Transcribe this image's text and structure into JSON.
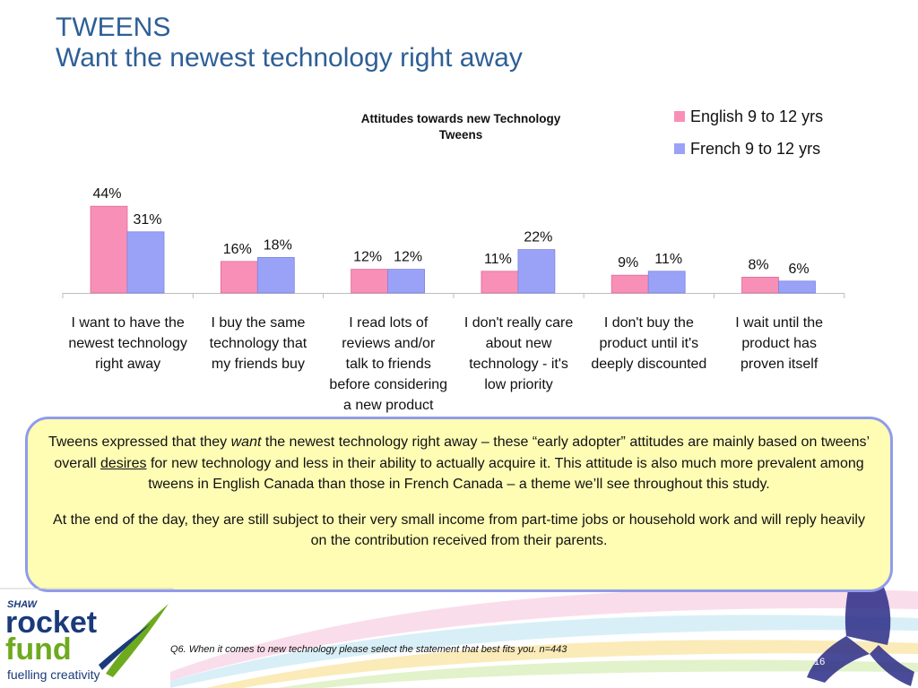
{
  "slide": {
    "title_line1": "TWEENS",
    "title_line2": "Want the newest technology right away",
    "page_number": "16",
    "footnote": "Q6. When it comes to new technology please select the statement that best fits you. n=443"
  },
  "logo": {
    "brand_top": "SHAW",
    "brand_line1": "rocket",
    "brand_line2": "fund",
    "tagline": "fuelling creativity",
    "colors": {
      "rocket": "#1a3a7a",
      "fund": "#6eaa1e"
    }
  },
  "chart_data": {
    "type": "bar",
    "title_line1": "Attitudes towards new Technology",
    "title_line2": "Tweens",
    "categories": [
      [
        "I want to have the",
        "newest technology",
        "right away"
      ],
      [
        "I buy the same",
        "technology that",
        "my friends buy"
      ],
      [
        "I read lots of",
        "reviews and/or",
        "talk to friends",
        "before considering",
        "a new product"
      ],
      [
        "I don't really care",
        "about new",
        "technology - it's",
        "low priority"
      ],
      [
        "I don't buy the",
        "product until it's",
        "deeply discounted"
      ],
      [
        "I wait until the",
        "product has",
        "proven itself"
      ]
    ],
    "series": [
      {
        "name": "English 9 to 12 yrs",
        "color": "#f88fb7",
        "values": [
          44,
          16,
          12,
          11,
          9,
          8
        ],
        "labels": [
          "44%",
          "16%",
          "12%",
          "11%",
          "9%",
          "8%"
        ]
      },
      {
        "name": "French 9 to 12 yrs",
        "color": "#9aa2f8",
        "values": [
          31,
          18,
          12,
          22,
          11,
          6
        ],
        "labels": [
          "31%",
          "18%",
          "12%",
          "22%",
          "11%",
          "6%"
        ]
      }
    ],
    "ylim": [
      0,
      50
    ],
    "grid": false,
    "legend_position": "top-right",
    "value_unit": "%"
  },
  "callout": {
    "p1_a": "Tweens expressed that they ",
    "p1_want": "want",
    "p1_b": " the newest technology right away – these “early adopter” attitudes are mainly based on tweens’ overall ",
    "p1_desires": "desires",
    "p1_c": " for new technology and less in their ability to actually acquire it. This attitude is also much more prevalent among tweens in English Canada than those in French Canada – a theme we’ll see throughout this study.",
    "p2": "At the end of the day, they are still subject to their very small income from part-time jobs or household work and will reply heavily on the contribution received from their parents.",
    "colors": {
      "fill": "#fffdb4",
      "border": "#8f9cec"
    }
  }
}
